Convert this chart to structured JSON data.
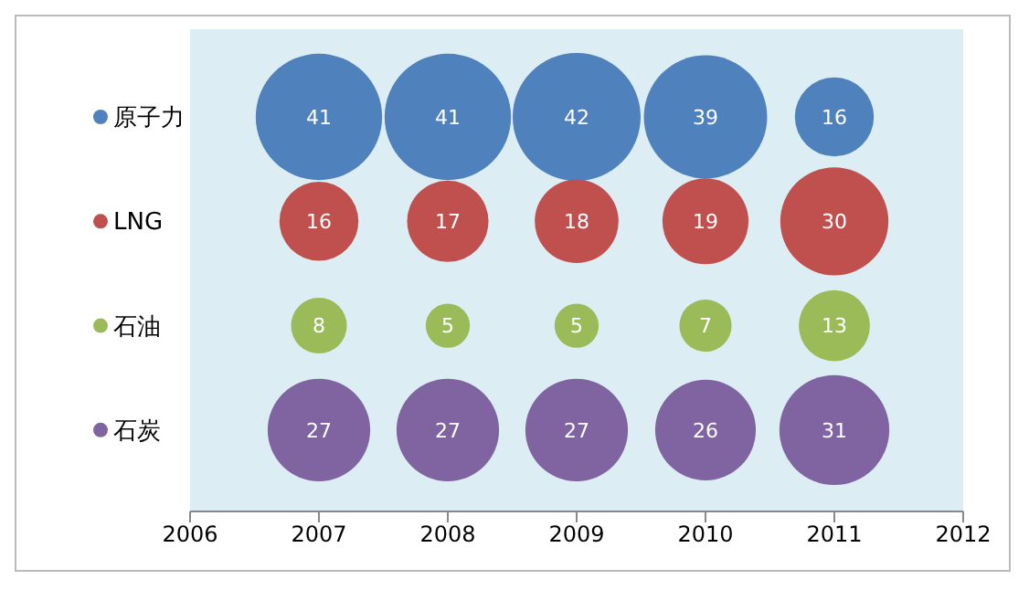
{
  "chart_data": {
    "type": "bubble",
    "orientation": "horizontal",
    "categories": [
      "原子力",
      "LNG",
      "石油",
      "石炭"
    ],
    "xlim": [
      2006,
      2012
    ],
    "xticks": [
      2006,
      2007,
      2008,
      2009,
      2010,
      2011,
      2012
    ],
    "grid": false,
    "series": [
      {
        "colors": [
          "#4f81bd",
          "#c0504d",
          "#9bbb59",
          "#8064a2"
        ],
        "values": [
          2007,
          2007,
          2007,
          2007
        ],
        "sizes": [
          41,
          16,
          8,
          27
        ],
        "value_labels": [
          "41",
          "16",
          "8",
          "27"
        ]
      },
      {
        "colors": [
          "#4f81bd",
          "#c0504d",
          "#9bbb59",
          "#8064a2"
        ],
        "values": [
          2008,
          2008,
          2008,
          2008
        ],
        "sizes": [
          41,
          17,
          5,
          27
        ],
        "value_labels": [
          "41",
          "17",
          "5",
          "27"
        ]
      },
      {
        "colors": [
          "#4f81bd",
          "#c0504d",
          "#9bbb59",
          "#8064a2"
        ],
        "values": [
          2009,
          2009,
          2009,
          2009
        ],
        "sizes": [
          42,
          18,
          5,
          27
        ],
        "value_labels": [
          "42",
          "18",
          "5",
          "27"
        ]
      },
      {
        "colors": [
          "#4f81bd",
          "#c0504d",
          "#9bbb59",
          "#8064a2"
        ],
        "values": [
          2010,
          2010,
          2010,
          2010
        ],
        "sizes": [
          39,
          19,
          7,
          26
        ],
        "value_labels": [
          "39",
          "19",
          "7",
          "26"
        ]
      },
      {
        "colors": [
          "#4f81bd",
          "#c0504d",
          "#9bbb59",
          "#8064a2"
        ],
        "values": [
          2011,
          2011,
          2011,
          2011
        ],
        "sizes": [
          16,
          30,
          13,
          31
        ],
        "value_labels": [
          "16",
          "30",
          "13",
          "31"
        ]
      }
    ]
  }
}
